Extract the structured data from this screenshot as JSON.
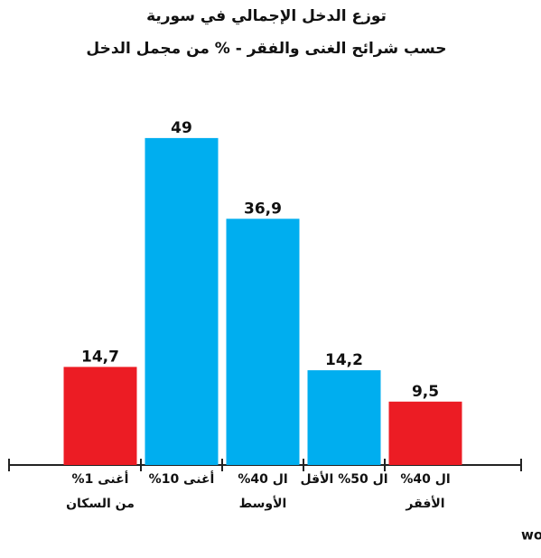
{
  "chart_data": {
    "type": "bar",
    "title": "توزع الدخل الإجمالي في سورية",
    "subtitle": "حسب شرائح الغنى والفقر - % من مجمل الدخل",
    "categories": [
      [
        "أغنى 1%",
        "من السكان"
      ],
      [
        "أغنى 10%"
      ],
      [
        "ال 40%",
        "الأوسط"
      ],
      [
        "ال 50% الأقل"
      ],
      [
        "ال 40%",
        "الأفقر"
      ]
    ],
    "values": [
      14.7,
      49,
      36.9,
      14.2,
      9.5
    ],
    "value_labels": [
      "14,7",
      "49",
      "36,9",
      "14,2",
      "9,5"
    ],
    "colors": [
      "#ec1c24",
      "#00aeef",
      "#00aeef",
      "#00aeef",
      "#ec1c24"
    ],
    "source": "المصدر: world inequality database"
  }
}
